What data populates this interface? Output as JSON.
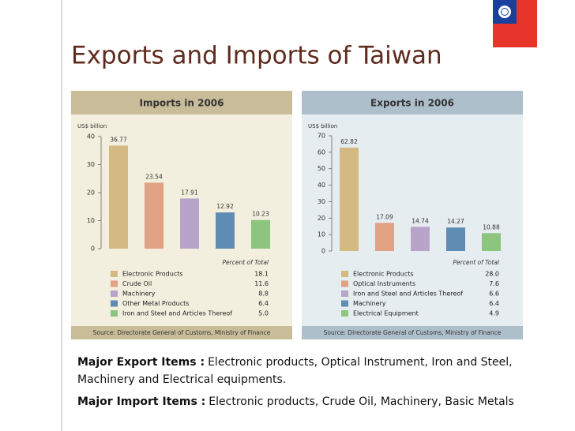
{
  "title": "Exports and Imports of Taiwan",
  "chart_data": [
    {
      "type": "bar",
      "title": "Imports in 2006",
      "y_label": "US$ billion",
      "categories": [
        "Electronic Products",
        "Crude Oil",
        "Machinery",
        "Other Metal Products",
        "Iron and Steel and Articles Thereof"
      ],
      "values": [
        36.77,
        23.54,
        17.91,
        12.92,
        10.23
      ],
      "colors": [
        "#d5b983",
        "#e0a283",
        "#b8a4c9",
        "#5f8cb2",
        "#8dc57e"
      ],
      "ylim": [
        0,
        40
      ],
      "yticks": [
        0,
        10,
        20,
        30,
        40
      ],
      "legend_header": "Percent of Total",
      "percents": [
        "18.1",
        "11.6",
        "8.8",
        "6.4",
        "5.0"
      ],
      "source": "Source: Directorate General of Customs, Ministry of Finance"
    },
    {
      "type": "bar",
      "title": "Exports in 2006",
      "y_label": "US$ billion",
      "categories": [
        "Electronic Products",
        "Optical Instruments",
        "Iron and Steel and Articles Thereof",
        "Machinery",
        "Electrical Equipment"
      ],
      "values": [
        62.82,
        17.09,
        14.74,
        14.27,
        10.88
      ],
      "colors": [
        "#d5b983",
        "#e0a283",
        "#b8a4c9",
        "#5f8cb2",
        "#8dc57e"
      ],
      "ylim": [
        0,
        70
      ],
      "yticks": [
        0,
        10,
        20,
        30,
        40,
        50,
        60,
        70
      ],
      "legend_header": "Percent of Total",
      "percents": [
        "28.0",
        "7.6",
        "6.6",
        "6.4",
        "4.9"
      ],
      "source": "Source: Directorate General of Customs, Ministry of Finance"
    }
  ],
  "notes": {
    "export_label": "Major Export Items :",
    "export_text": "Electronic products, Optical Instrument, Iron and Steel, Machinery and Electrical equipments.",
    "import_label": "Major Import Items :",
    "import_text": "Electronic products, Crude Oil, Machinery, Basic Metals"
  }
}
